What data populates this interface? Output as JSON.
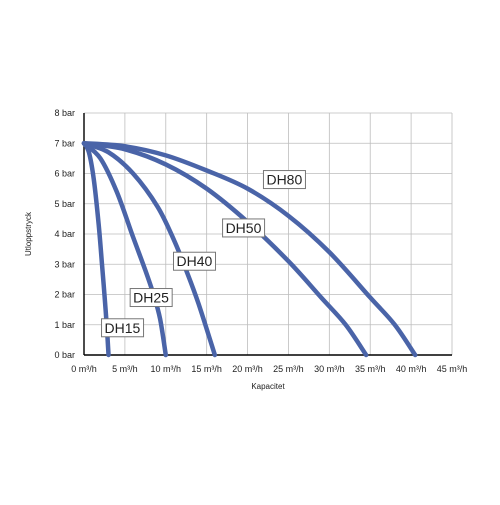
{
  "chart_data": {
    "type": "line",
    "title": "",
    "xlabel": "Kapacitet",
    "ylabel": "Utloppstryck",
    "xlim": [
      0,
      45
    ],
    "ylim": [
      0,
      8
    ],
    "grid": true,
    "legend": "none",
    "x_ticks": [
      "0 m³/h",
      "5 m³/h",
      "10 m³/h",
      "15 m³/h",
      "20 m³/h",
      "25 m³/h",
      "30 m³/h",
      "35 m³/h",
      "40 m³/h",
      "45 m³/h"
    ],
    "y_ticks": [
      "0 bar",
      "1 bar",
      "2 bar",
      "3 bar",
      "4 bar",
      "5 bar",
      "6 bar",
      "7 bar",
      "8 bar"
    ],
    "series_color": "#4a64a8",
    "series": [
      {
        "name": "DH15",
        "x": [
          0,
          0.6,
          1.2,
          1.8,
          2.2,
          2.5,
          2.8,
          3.0
        ],
        "y": [
          7.0,
          6.7,
          5.8,
          4.3,
          3.0,
          2.0,
          0.9,
          0.0
        ]
      },
      {
        "name": "DH25",
        "x": [
          0,
          2,
          4,
          6,
          7.5,
          8.5,
          9.3,
          10.0
        ],
        "y": [
          7.0,
          6.5,
          5.4,
          3.9,
          2.8,
          2.0,
          1.2,
          0.0
        ]
      },
      {
        "name": "DH40",
        "x": [
          0,
          3,
          6,
          9,
          11,
          12.5,
          14,
          16.0
        ],
        "y": [
          7.0,
          6.7,
          6.0,
          4.9,
          3.8,
          2.8,
          1.7,
          0.0
        ]
      },
      {
        "name": "DH50",
        "x": [
          0,
          5,
          10,
          15,
          20,
          25,
          29,
          32,
          34.5
        ],
        "y": [
          7.0,
          6.8,
          6.3,
          5.5,
          4.4,
          3.1,
          1.9,
          1.0,
          0.0
        ]
      },
      {
        "name": "DH80",
        "x": [
          0,
          5,
          10,
          15,
          20,
          25,
          30,
          35,
          38,
          40.5
        ],
        "y": [
          7.0,
          6.9,
          6.6,
          6.1,
          5.5,
          4.6,
          3.4,
          1.9,
          1.0,
          0.0
        ]
      }
    ],
    "curve_labels": [
      {
        "text": "DH80",
        "x": 24.5,
        "y": 5.8
      },
      {
        "text": "DH50",
        "x": 19.5,
        "y": 4.2
      },
      {
        "text": "DH40",
        "x": 13.5,
        "y": 3.1
      },
      {
        "text": "DH25",
        "x": 8.2,
        "y": 1.9
      },
      {
        "text": "DH15",
        "x": 4.7,
        "y": 0.9
      }
    ]
  }
}
